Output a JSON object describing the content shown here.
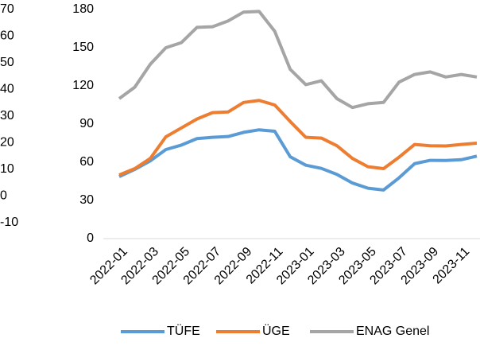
{
  "chart_data": {
    "type": "line",
    "categories": [
      "2022-01",
      null,
      "2022-03",
      null,
      "2022-05",
      null,
      "2022-07",
      null,
      "2022-09",
      null,
      "2022-11",
      null,
      "2023-01",
      null,
      "2023-03",
      null,
      "2023-05",
      null,
      "2023-07",
      null,
      "2023-09",
      null,
      "2023-11",
      null
    ],
    "series": [
      {
        "name": "TÜFE",
        "color": "#5b9bd5",
        "values": [
          48.7,
          54.4,
          61.1,
          70,
          73.5,
          78.6,
          79.6,
          80.2,
          83.5,
          85.5,
          84.4,
          64.3,
          57.7,
          55.2,
          50.5,
          43.7,
          39.6,
          38.2,
          47.8,
          58.9,
          61.5,
          61.4,
          62,
          64.8
        ]
      },
      {
        "name": "ÜGE",
        "color": "#ed7d31",
        "values": [
          50,
          55,
          63,
          80,
          87,
          94,
          99,
          99.5,
          107,
          108.6,
          105,
          92,
          79.6,
          79,
          73,
          63,
          56.5,
          55,
          64,
          74,
          73,
          72.8,
          74,
          75
        ]
      },
      {
        "name": "ENAG Genel",
        "color": "#a5a5a5",
        "values": [
          110,
          119,
          137,
          150,
          154,
          166,
          166.5,
          171,
          178,
          178.5,
          163,
          133,
          121,
          124,
          110,
          103,
          106,
          107,
          123,
          129,
          131,
          127,
          129,
          127
        ]
      }
    ],
    "ylim": [
      0,
      180
    ],
    "yticks": [
      0,
      30,
      60,
      90,
      120,
      150,
      180
    ],
    "y2lim": [
      -16,
      70
    ],
    "y2ticks": [
      -10,
      0,
      10,
      20,
      30,
      40,
      50,
      60,
      70
    ],
    "legend": "bottom"
  }
}
